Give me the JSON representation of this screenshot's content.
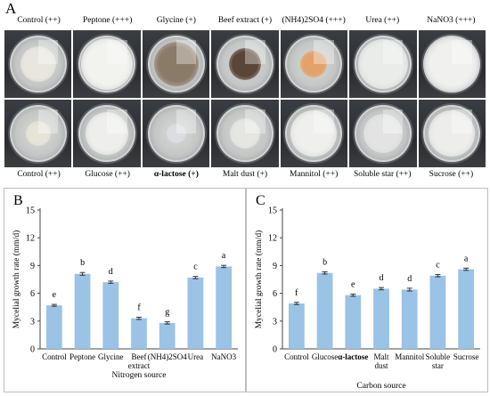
{
  "panel_a": {
    "letter": "A",
    "top_labels": [
      "Control (++)",
      "Peptone (+++)",
      "Glycine (+)",
      "Beef extract (+)",
      "(NH4)2SO4 (+++)",
      "Urea (++)",
      "NaNO3 (+++)"
    ],
    "bottom_labels": [
      "Control (++)",
      "Glucose (++)",
      "α-lactose (+)",
      "Malt dust (+)",
      "Mannitol (++)",
      "Soluble star (++)",
      "Sucrose (++)"
    ],
    "colonies_top": [
      "#e8e6df",
      "#f2f2ef",
      "#8a7a68",
      "#5a4638",
      "#e3a26a",
      "#e9ece9",
      "#f0f0ee"
    ],
    "colonies_bottom": [
      "#e6e3d7",
      "#eeeeec",
      "#dcdde0",
      "#e5e5e2",
      "#efefed",
      "#e2e3e2",
      "#ededeb"
    ]
  },
  "chart_data": [
    {
      "panel": "B",
      "type": "bar",
      "categories": [
        "Control",
        "Peptone",
        "Glycine",
        "Beef extract",
        "(NH4)2SO4",
        "Urea",
        "NaNO3"
      ],
      "values": [
        4.7,
        8.1,
        7.2,
        3.3,
        2.8,
        7.7,
        8.9
      ],
      "errors": [
        0.1,
        0.15,
        0.12,
        0.12,
        0.12,
        0.12,
        0.12
      ],
      "letters": [
        "e",
        "b",
        "d",
        "f",
        "g",
        "c",
        "a"
      ],
      "xlabel": "Nitrogen source",
      "ylabel": "Mycelial growth rate (mm/d)",
      "yticks": [
        0,
        3,
        6,
        9,
        12,
        15
      ],
      "ylim": [
        0,
        15
      ],
      "color": "#9ac3e6"
    },
    {
      "panel": "C",
      "type": "bar",
      "categories": [
        "Control",
        "Glucose",
        "α-lactose",
        "Malt dust",
        "Mannitol",
        "Soluble star",
        "Sucrose"
      ],
      "values": [
        4.9,
        8.2,
        5.8,
        6.5,
        6.4,
        7.9,
        8.6
      ],
      "errors": [
        0.12,
        0.12,
        0.12,
        0.12,
        0.15,
        0.12,
        0.12
      ],
      "letters": [
        "f",
        "b",
        "e",
        "d",
        "d",
        "c",
        "a"
      ],
      "xlabel": "Carbon source",
      "ylabel": "Mycelial growth rate (mm/d)",
      "yticks": [
        0,
        3,
        6,
        9,
        12,
        15
      ],
      "ylim": [
        0,
        15
      ],
      "color": "#9ac3e6"
    }
  ]
}
